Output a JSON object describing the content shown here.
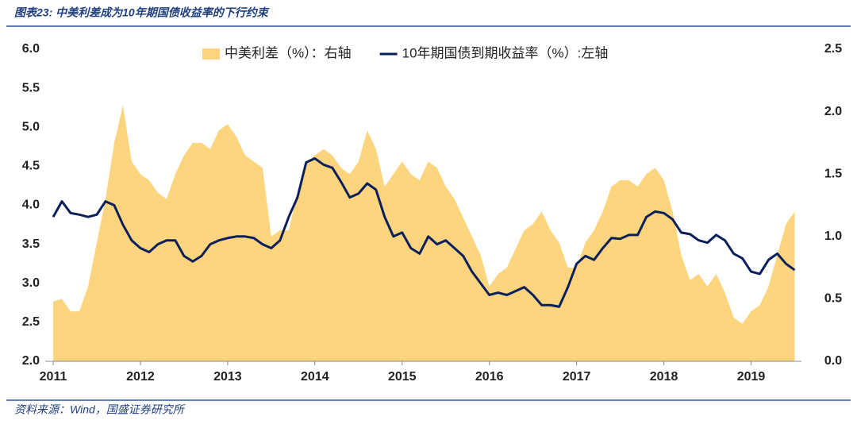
{
  "title": "图表23: 中美利差成为10年期国债收益率的下行约束",
  "source": "资料来源：Wind，国盛证券研究所",
  "chart_data": {
    "type": "combo",
    "x": [
      2011.0,
      2011.1,
      2011.2,
      2011.3,
      2011.4,
      2011.5,
      2011.6,
      2011.7,
      2011.8,
      2011.9,
      2012.0,
      2012.1,
      2012.2,
      2012.3,
      2012.4,
      2012.5,
      2012.6,
      2012.7,
      2012.8,
      2012.9,
      2013.0,
      2013.1,
      2013.2,
      2013.3,
      2013.4,
      2013.5,
      2013.6,
      2013.7,
      2013.8,
      2013.9,
      2014.0,
      2014.1,
      2014.2,
      2014.3,
      2014.4,
      2014.5,
      2014.6,
      2014.7,
      2014.8,
      2014.9,
      2015.0,
      2015.1,
      2015.2,
      2015.3,
      2015.4,
      2015.5,
      2015.6,
      2015.7,
      2015.8,
      2015.9,
      2016.0,
      2016.1,
      2016.2,
      2016.3,
      2016.4,
      2016.5,
      2016.6,
      2016.7,
      2016.8,
      2016.9,
      2017.0,
      2017.1,
      2017.2,
      2017.3,
      2017.4,
      2017.5,
      2017.6,
      2017.7,
      2017.8,
      2017.9,
      2018.0,
      2018.1,
      2018.2,
      2018.3,
      2018.4,
      2018.5,
      2018.6,
      2018.7,
      2018.8,
      2018.9,
      2019.0,
      2019.1,
      2019.2,
      2019.3,
      2019.4,
      2019.5
    ],
    "series": [
      {
        "name": "中美利差（%）：右轴",
        "type": "area",
        "axis": "y2",
        "color": "#fdd57e",
        "values": [
          0.48,
          0.5,
          0.4,
          0.4,
          0.6,
          0.95,
          1.3,
          1.75,
          2.05,
          1.6,
          1.5,
          1.45,
          1.35,
          1.3,
          1.5,
          1.65,
          1.75,
          1.75,
          1.7,
          1.85,
          1.9,
          1.8,
          1.65,
          1.6,
          1.55,
          1.0,
          1.05,
          1.05,
          1.35,
          1.6,
          1.65,
          1.7,
          1.65,
          1.55,
          1.5,
          1.6,
          1.85,
          1.7,
          1.4,
          1.5,
          1.6,
          1.5,
          1.45,
          1.6,
          1.55,
          1.4,
          1.3,
          1.15,
          1.0,
          0.85,
          0.6,
          0.7,
          0.75,
          0.9,
          1.05,
          1.1,
          1.2,
          1.05,
          0.95,
          0.75,
          0.75,
          0.95,
          1.05,
          1.2,
          1.4,
          1.45,
          1.45,
          1.4,
          1.5,
          1.55,
          1.45,
          1.2,
          0.85,
          0.65,
          0.7,
          0.6,
          0.7,
          0.55,
          0.35,
          0.3,
          0.4,
          0.45,
          0.6,
          0.85,
          1.1,
          1.2
        ]
      },
      {
        "name": "10年期国债到期收益率（%）:左轴",
        "type": "line",
        "axis": "y",
        "color": "#0b1f5c",
        "values": [
          3.85,
          4.05,
          3.9,
          3.88,
          3.85,
          3.88,
          4.05,
          4.0,
          3.75,
          3.55,
          3.45,
          3.4,
          3.5,
          3.55,
          3.55,
          3.35,
          3.28,
          3.35,
          3.5,
          3.55,
          3.58,
          3.6,
          3.6,
          3.58,
          3.5,
          3.45,
          3.55,
          3.85,
          4.1,
          4.55,
          4.6,
          4.52,
          4.48,
          4.3,
          4.1,
          4.15,
          4.28,
          4.2,
          3.85,
          3.6,
          3.65,
          3.45,
          3.38,
          3.6,
          3.5,
          3.55,
          3.45,
          3.35,
          3.15,
          3.0,
          2.85,
          2.88,
          2.85,
          2.9,
          2.95,
          2.85,
          2.72,
          2.72,
          2.7,
          2.95,
          3.25,
          3.35,
          3.3,
          3.45,
          3.58,
          3.57,
          3.62,
          3.62,
          3.85,
          3.92,
          3.9,
          3.82,
          3.65,
          3.63,
          3.55,
          3.52,
          3.62,
          3.55,
          3.38,
          3.32,
          3.15,
          3.12,
          3.3,
          3.38,
          3.25,
          3.17
        ]
      }
    ],
    "xlim": [
      2011,
      2019.55
    ],
    "xticks": [
      2011,
      2012,
      2013,
      2014,
      2015,
      2016,
      2017,
      2018,
      2019
    ],
    "ylim": [
      2,
      6
    ],
    "yticks": [
      {
        "value": 2,
        "label": "2.0"
      },
      2.5,
      {
        "value": 3,
        "label": "3.0"
      },
      3.5,
      {
        "value": 4,
        "label": "4.0"
      },
      4.5,
      {
        "value": 5,
        "label": "5.0"
      },
      5.5,
      {
        "value": 6,
        "label": "6.0"
      }
    ],
    "y2lim": [
      0,
      2.5
    ],
    "y2ticks": [
      {
        "value": 0,
        "label": "0.0"
      },
      0.5,
      {
        "value": 1,
        "label": "1.0"
      },
      1.5,
      {
        "value": 2,
        "label": "2.0"
      },
      2.5
    ],
    "legend": "top"
  }
}
